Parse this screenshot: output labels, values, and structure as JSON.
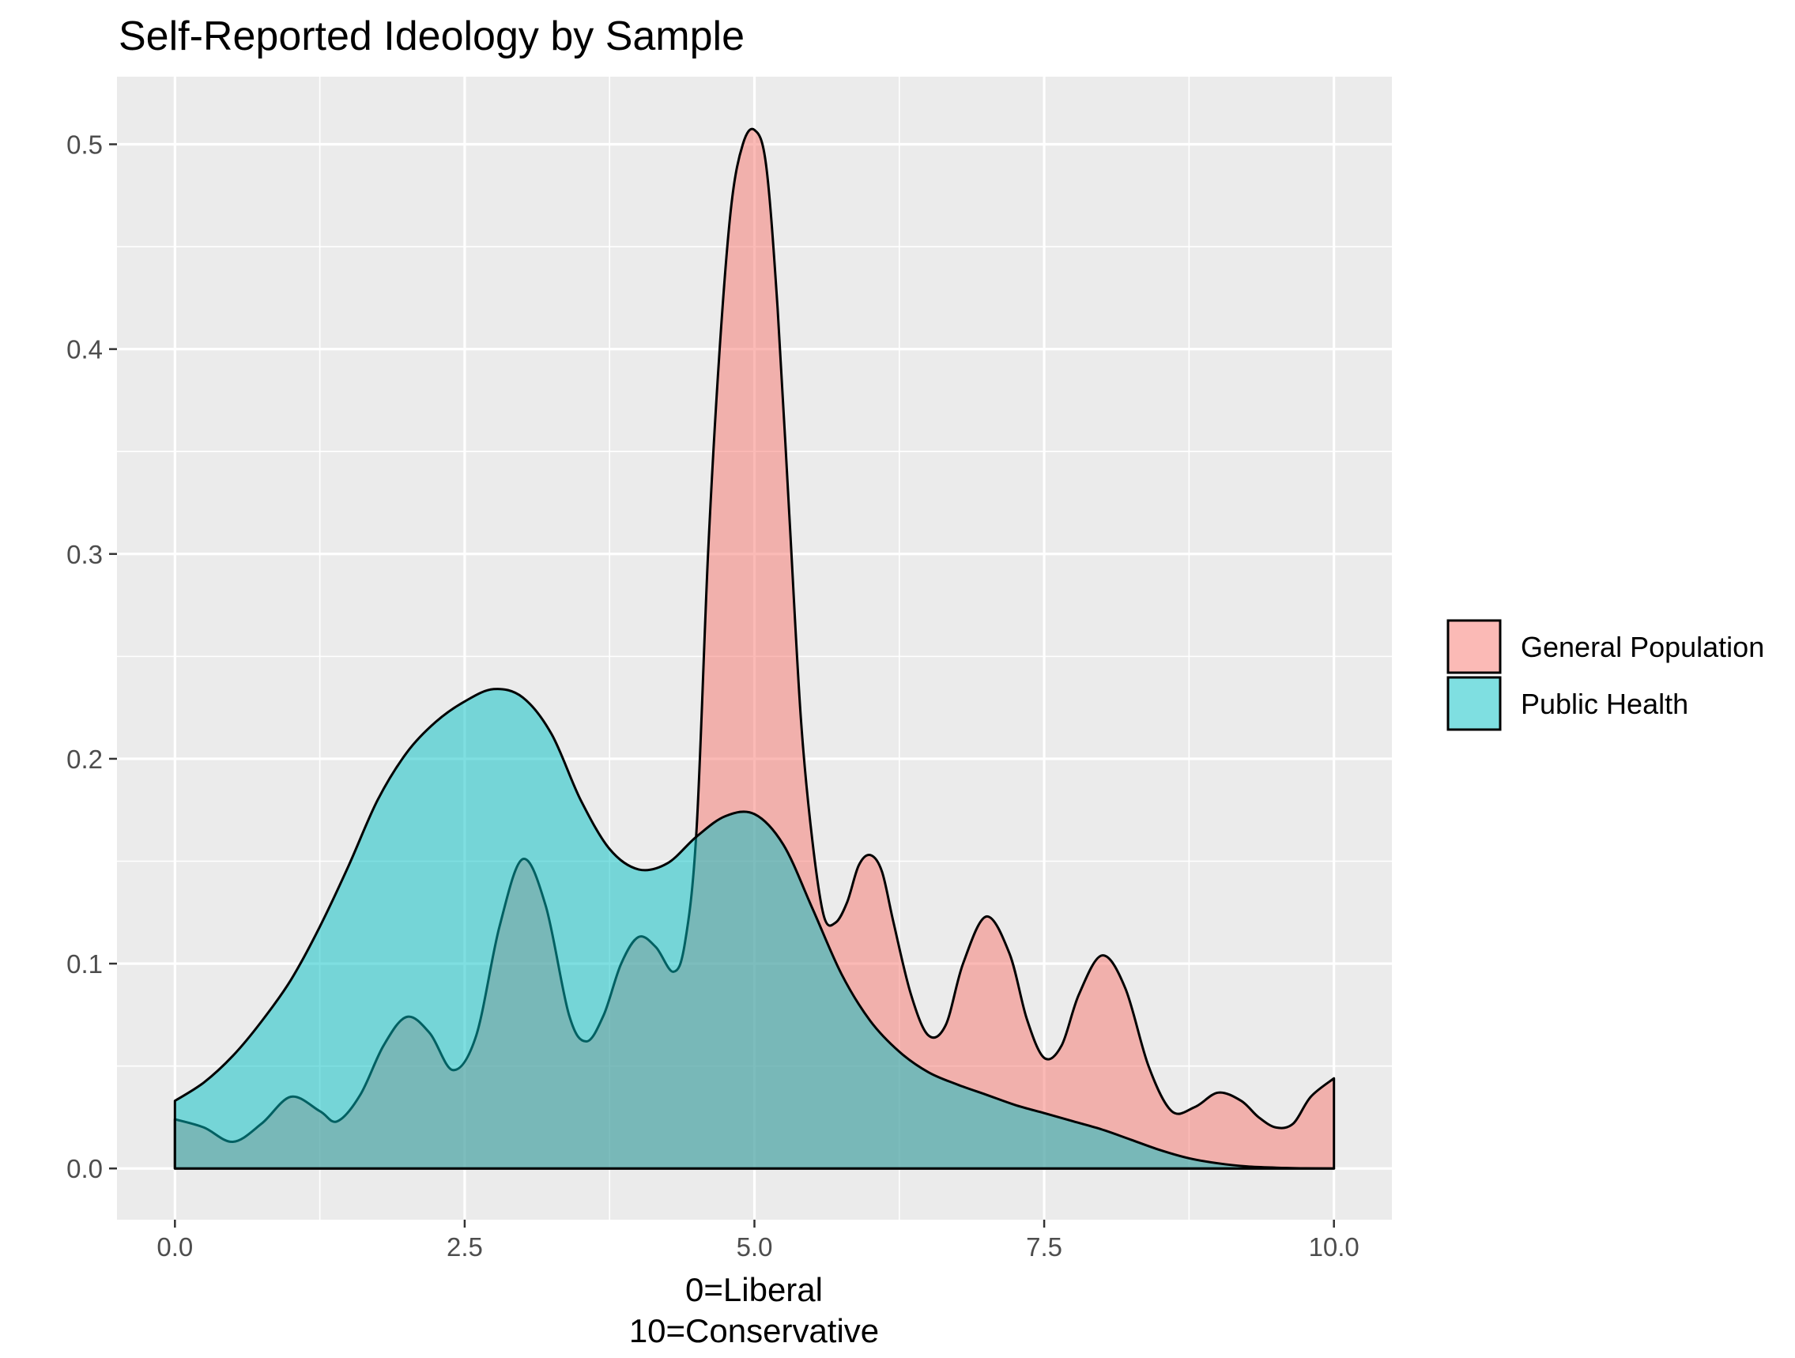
{
  "chart_data": {
    "type": "area",
    "title": "Self-Reported Ideology by Sample",
    "xlabel_lines": [
      "0=Liberal",
      "10=Conservative"
    ],
    "ylabel": "",
    "xlim": [
      -0.5,
      10.5
    ],
    "ylim": [
      -0.025,
      0.533
    ],
    "x_ticks": [
      0,
      2.5,
      5,
      7.5,
      10
    ],
    "x_tick_labels": [
      "0.0",
      "2.5",
      "5.0",
      "7.5",
      "10.0"
    ],
    "y_ticks": [
      0,
      0.1,
      0.2,
      0.3,
      0.4,
      0.5
    ],
    "y_tick_labels": [
      "0.0",
      "0.1",
      "0.2",
      "0.3",
      "0.4",
      "0.5"
    ],
    "grid": true,
    "legend_position": "right",
    "series": [
      {
        "name": "General Population",
        "color": "#F8766D",
        "fill_opacity": 0.5,
        "x": [
          0,
          0.25,
          0.5,
          0.75,
          1,
          1.25,
          1.4,
          1.6,
          1.8,
          2,
          2.2,
          2.4,
          2.6,
          2.8,
          3,
          3.2,
          3.4,
          3.55,
          3.7,
          3.85,
          4,
          4.15,
          4.3,
          4.4,
          4.5,
          4.6,
          4.7,
          4.8,
          4.9,
          5,
          5.1,
          5.2,
          5.3,
          5.4,
          5.5,
          5.6,
          5.7,
          5.8,
          5.9,
          6,
          6.1,
          6.2,
          6.35,
          6.5,
          6.65,
          6.8,
          7,
          7.2,
          7.35,
          7.5,
          7.65,
          7.8,
          8,
          8.2,
          8.4,
          8.6,
          8.8,
          9,
          9.2,
          9.35,
          9.5,
          9.65,
          9.8,
          10
        ],
        "y": [
          0.024,
          0.02,
          0.013,
          0.022,
          0.035,
          0.028,
          0.023,
          0.036,
          0.06,
          0.074,
          0.066,
          0.048,
          0.065,
          0.118,
          0.151,
          0.128,
          0.075,
          0.062,
          0.075,
          0.1,
          0.113,
          0.108,
          0.096,
          0.11,
          0.165,
          0.3,
          0.4,
          0.47,
          0.5,
          0.507,
          0.49,
          0.42,
          0.32,
          0.22,
          0.16,
          0.123,
          0.12,
          0.13,
          0.148,
          0.153,
          0.145,
          0.12,
          0.085,
          0.065,
          0.07,
          0.1,
          0.123,
          0.105,
          0.073,
          0.054,
          0.06,
          0.085,
          0.104,
          0.088,
          0.05,
          0.028,
          0.03,
          0.037,
          0.033,
          0.025,
          0.02,
          0.022,
          0.035,
          0.044
        ]
      },
      {
        "name": "Public Health",
        "color": "#00BFC4",
        "fill_opacity": 0.5,
        "x": [
          0,
          0.25,
          0.5,
          0.75,
          1,
          1.25,
          1.5,
          1.75,
          2,
          2.25,
          2.5,
          2.75,
          3,
          3.25,
          3.5,
          3.75,
          4,
          4.25,
          4.5,
          4.75,
          5,
          5.25,
          5.5,
          5.75,
          6,
          6.25,
          6.5,
          6.75,
          7,
          7.25,
          7.5,
          7.75,
          8,
          8.25,
          8.5,
          8.75,
          9,
          9.25,
          9.5,
          9.75,
          10
        ],
        "y": [
          0.033,
          0.042,
          0.055,
          0.072,
          0.092,
          0.118,
          0.148,
          0.18,
          0.203,
          0.218,
          0.228,
          0.234,
          0.23,
          0.212,
          0.18,
          0.156,
          0.146,
          0.149,
          0.162,
          0.172,
          0.173,
          0.158,
          0.127,
          0.095,
          0.072,
          0.057,
          0.047,
          0.041,
          0.036,
          0.031,
          0.027,
          0.023,
          0.019,
          0.014,
          0.009,
          0.005,
          0.0025,
          0.001,
          0.0004,
          0.0001,
          0.0
        ]
      }
    ]
  }
}
